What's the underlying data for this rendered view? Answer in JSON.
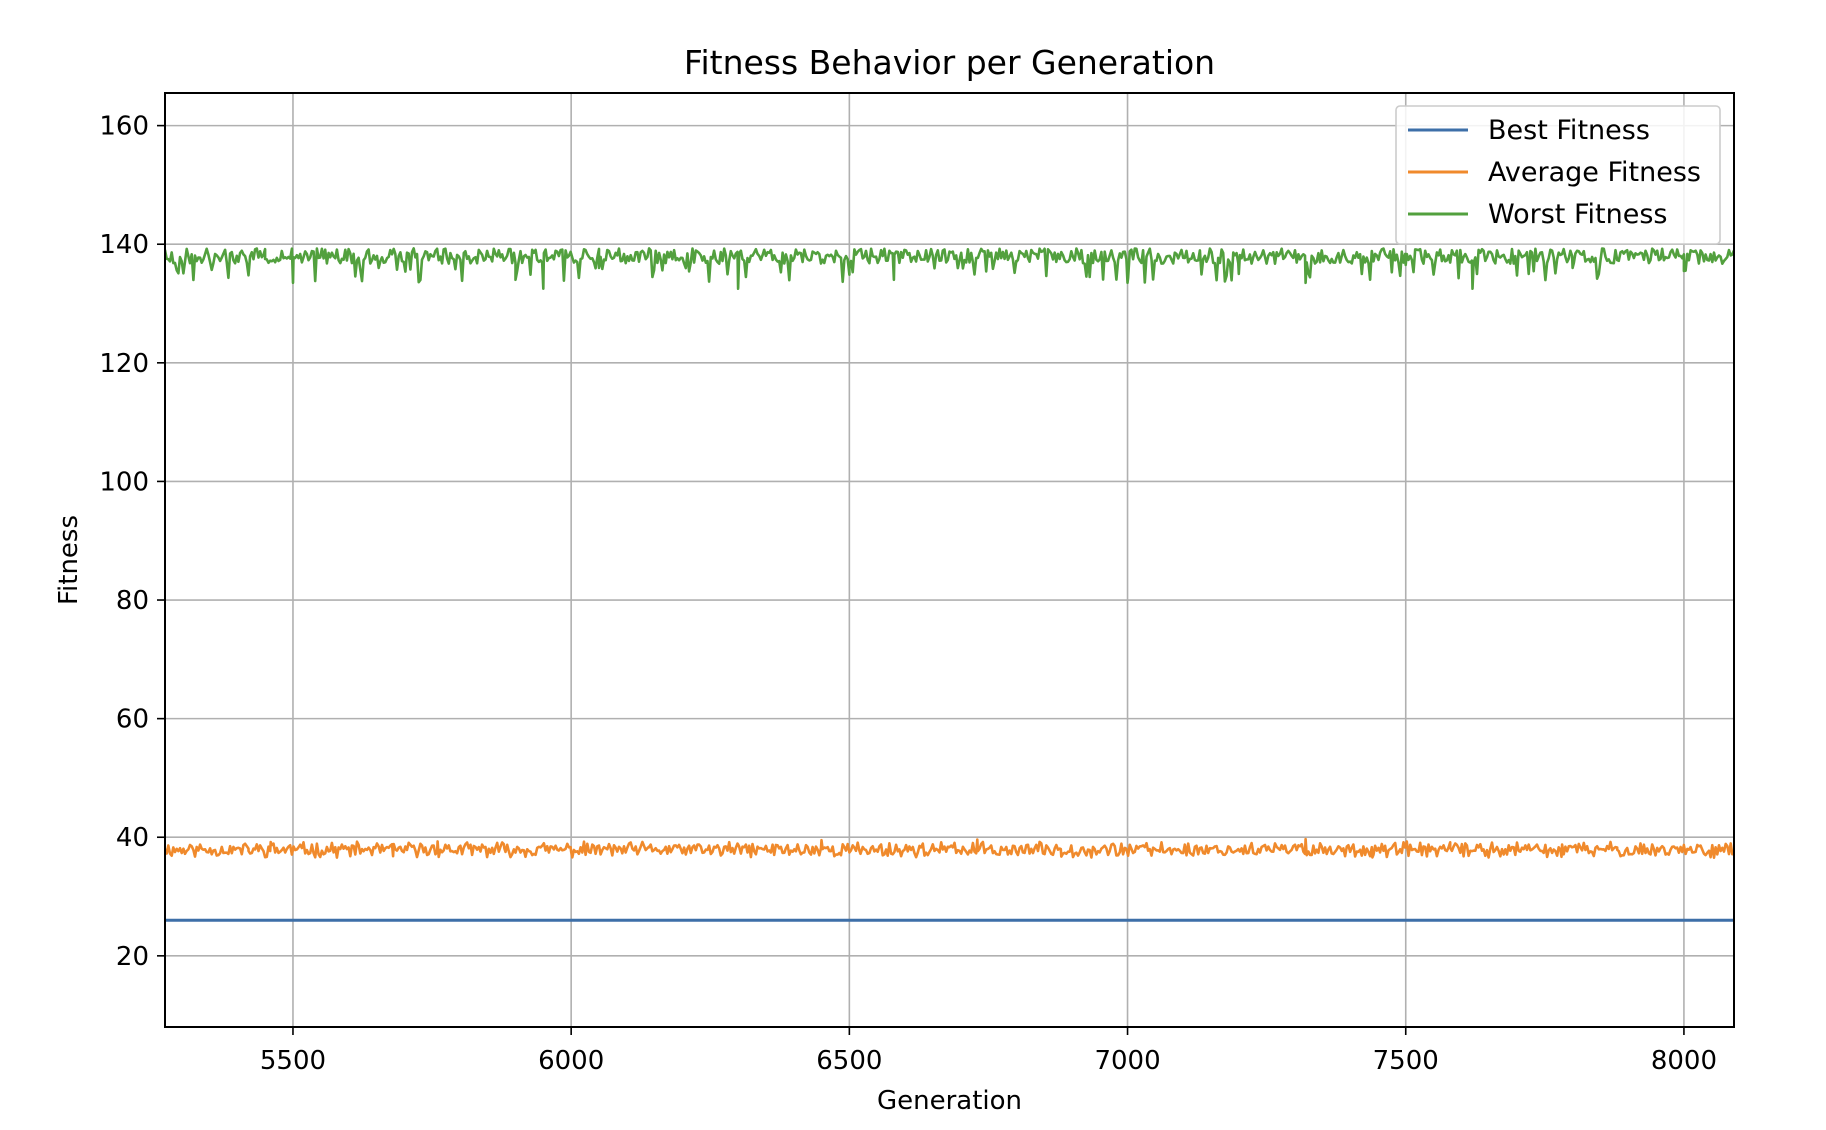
{
  "chart_data": {
    "type": "line",
    "title": "Fitness Behavior per Generation",
    "xlabel": "Generation",
    "ylabel": "Fitness",
    "xlim": [
      5270,
      8090
    ],
    "ylim": [
      8,
      165.5
    ],
    "xticks": [
      5500,
      6000,
      6500,
      7000,
      7500,
      8000
    ],
    "yticks": [
      20,
      40,
      60,
      80,
      100,
      120,
      140,
      160
    ],
    "grid": true,
    "legend_position": "top-right",
    "generation_start": 5270,
    "generation_end": 8090,
    "series": [
      {
        "name": "Best Fitness",
        "color": "#3d6fa8",
        "x": [
          5270,
          8090
        ],
        "values": [
          26,
          26
        ]
      },
      {
        "name": "Average Fitness",
        "color": "#f08a2c",
        "x": [
          5270,
          5420,
          5460,
          5680,
          5760,
          5880,
          6000,
          6140,
          6300,
          6450,
          6520,
          6730,
          6880,
          7010,
          7160,
          7320,
          7440,
          7580,
          7780,
          7880,
          8000,
          8090
        ],
        "values": [
          38,
          37.7,
          39.2,
          36.8,
          39.3,
          38.1,
          37.5,
          38.3,
          38.8,
          39.5,
          37.2,
          39.6,
          38.0,
          37.4,
          38.5,
          39.7,
          36.6,
          38.2,
          36.7,
          37.9,
          38.6,
          37.8
        ]
      },
      {
        "name": "Worst Fitness",
        "color": "#52a03e",
        "x": [
          5270,
          5450,
          5500,
          5900,
          5950,
          6050,
          6300,
          6500,
          6580,
          6800,
          7000,
          7200,
          7320,
          7500,
          7620,
          7800,
          8000,
          8090
        ],
        "values": [
          139,
          137.5,
          133.5,
          134,
          132.5,
          136,
          132.5,
          136.5,
          134,
          137,
          133.5,
          135,
          133.5,
          136.5,
          132.5,
          136,
          135.5,
          138
        ]
      }
    ]
  }
}
